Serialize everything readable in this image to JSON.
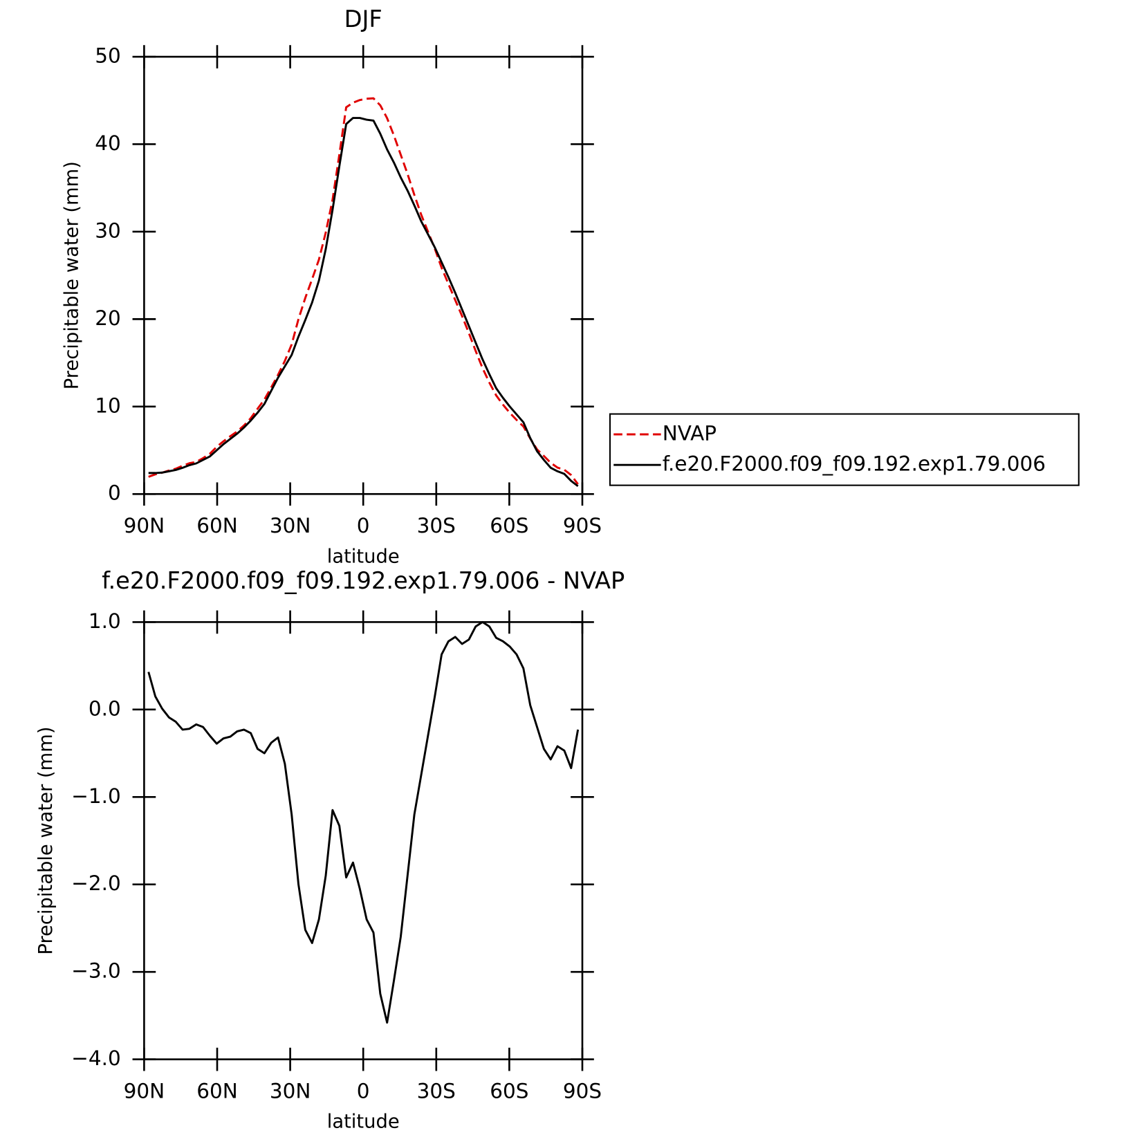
{
  "chart_data": [
    {
      "type": "line",
      "title": "DJF",
      "xlabel": "latitude",
      "ylabel": "Precipitable water (mm)",
      "x": [
        88.2,
        85.4,
        82.6,
        79.8,
        77,
        74.2,
        71.4,
        68.6,
        65.8,
        63,
        60.2,
        57.4,
        54.6,
        51.8,
        49,
        46.2,
        43.4,
        40.6,
        37.8,
        35,
        32.2,
        29.4,
        26.6,
        23.8,
        21,
        18.2,
        15.4,
        12.6,
        9.8,
        7,
        4.2,
        1.4,
        -1.4,
        -4.2,
        -7,
        -9.8,
        -12.6,
        -15.4,
        -18.2,
        -21,
        -23.8,
        -26.6,
        -29.4,
        -32.2,
        -35,
        -37.8,
        -40.6,
        -43.4,
        -46.2,
        -49,
        -51.8,
        -54.6,
        -57.4,
        -60.2,
        -63,
        -65.8,
        -68.6,
        -71.4,
        -74.2,
        -77,
        -79.8,
        -82.6,
        -85.4,
        -88.2
      ],
      "series": [
        {
          "name": "NVAP",
          "color": "#e00000",
          "line_style": "dashed",
          "values": [
            1.97,
            2.25,
            2.44,
            2.69,
            2.89,
            3.23,
            3.52,
            3.67,
            4.1,
            4.6,
            5.39,
            6.03,
            6.61,
            7.15,
            7.83,
            8.67,
            9.75,
            10.8,
            12.18,
            13.62,
            15.22,
            17.1,
            20,
            22.42,
            24.57,
            26.8,
            29.9,
            33.65,
            38.83,
            44.22,
            44.75,
            45.05,
            45.2,
            45.25,
            44.45,
            42.98,
            41,
            38.8,
            36.6,
            34.2,
            31.95,
            30,
            28.05,
            25.87,
            24.02,
            22.17,
            20.35,
            18.4,
            16.35,
            14.4,
            12.75,
            11.28,
            10.22,
            9.28,
            8.47,
            7.73,
            6.35,
            5.1,
            4.35,
            3.57,
            3.02,
            2.77,
            2.17,
            1.13
          ]
        },
        {
          "name": "f.e20.F2000.f09_f09.192.exp1.79.006",
          "color": "#000000",
          "line_style": "solid",
          "values": [
            2.4,
            2.4,
            2.45,
            2.6,
            2.75,
            3.0,
            3.3,
            3.5,
            3.9,
            4.3,
            5.0,
            5.7,
            6.3,
            6.9,
            7.6,
            8.4,
            9.3,
            10.3,
            11.8,
            13.3,
            14.6,
            15.9,
            18.0,
            19.9,
            21.9,
            24.4,
            28.0,
            32.5,
            37.5,
            42.3,
            43.0,
            43.0,
            42.8,
            42.7,
            41.2,
            39.4,
            37.9,
            36.2,
            34.7,
            33.0,
            31.2,
            29.7,
            28.2,
            26.5,
            24.8,
            23.0,
            21.1,
            19.2,
            17.3,
            15.4,
            13.7,
            12.1,
            11.0,
            10.0,
            9.1,
            8.2,
            6.4,
            4.9,
            3.9,
            3.0,
            2.6,
            2.3,
            1.5,
            0.9
          ]
        }
      ],
      "xlim": [
        90,
        -90
      ],
      "xticks": [
        {
          "value": 90,
          "label": "90N"
        },
        {
          "value": 60,
          "label": "60N"
        },
        {
          "value": 30,
          "label": "30N"
        },
        0,
        {
          "value": -30,
          "label": "30S"
        },
        {
          "value": -60,
          "label": "60S"
        },
        {
          "value": -90,
          "label": "90S"
        }
      ],
      "ylim": [
        0,
        50
      ],
      "yticks": [
        0,
        10,
        20,
        30,
        40,
        50
      ],
      "legend": "outside-right"
    },
    {
      "type": "line",
      "title": "f.e20.F2000.f09_f09.192.exp1.79.006 - NVAP",
      "xlabel": "latitude",
      "ylabel": "Precipitable water (mm)",
      "x": [
        88.2,
        85.4,
        82.6,
        79.8,
        77,
        74.2,
        71.4,
        68.6,
        65.8,
        63,
        60.2,
        57.4,
        54.6,
        51.8,
        49,
        46.2,
        43.4,
        40.6,
        37.8,
        35,
        32.2,
        29.4,
        26.6,
        23.8,
        21,
        18.2,
        15.4,
        12.6,
        9.8,
        7,
        4.2,
        1.4,
        -1.4,
        -4.2,
        -7,
        -9.8,
        -12.6,
        -15.4,
        -18.2,
        -21,
        -23.8,
        -26.6,
        -29.4,
        -32.2,
        -35,
        -37.8,
        -40.6,
        -43.4,
        -46.2,
        -49,
        -51.8,
        -54.6,
        -57.4,
        -60.2,
        -63,
        -65.8,
        -68.6,
        -71.4,
        -74.2,
        -77,
        -79.8,
        -82.6,
        -85.4,
        -88.2
      ],
      "series": [
        {
          "color": "#000000",
          "line_style": "solid",
          "values": [
            0.43,
            0.15,
            0.01,
            -0.09,
            -0.14,
            -0.23,
            -0.22,
            -0.17,
            -0.2,
            -0.3,
            -0.39,
            -0.33,
            -0.31,
            -0.25,
            -0.23,
            -0.27,
            -0.45,
            -0.5,
            -0.38,
            -0.32,
            -0.62,
            -1.2,
            -2.0,
            -2.52,
            -2.67,
            -2.4,
            -1.9,
            -1.15,
            -1.33,
            -1.92,
            -1.75,
            -2.05,
            -2.4,
            -2.55,
            -3.25,
            -3.58,
            -3.1,
            -2.6,
            -1.9,
            -1.2,
            -0.75,
            -0.3,
            0.15,
            0.63,
            0.78,
            0.83,
            0.75,
            0.8,
            0.95,
            1.0,
            0.95,
            0.82,
            0.78,
            0.72,
            0.63,
            0.47,
            0.05,
            -0.2,
            -0.45,
            -0.57,
            -0.42,
            -0.47,
            -0.67,
            -0.23
          ]
        }
      ],
      "xlim": [
        90,
        -90
      ],
      "xticks": [
        {
          "value": 90,
          "label": "90N"
        },
        {
          "value": 60,
          "label": "60N"
        },
        {
          "value": 30,
          "label": "30N"
        },
        0,
        {
          "value": -30,
          "label": "30S"
        },
        {
          "value": -60,
          "label": "60S"
        },
        {
          "value": -90,
          "label": "90S"
        }
      ],
      "ylim": [
        -4,
        1
      ],
      "yticks": [
        {
          "value": -4,
          "label": "−4.0"
        },
        {
          "value": -3,
          "label": "−3.0"
        },
        {
          "value": -2,
          "label": "−2.0"
        },
        {
          "value": -1,
          "label": "−1.0"
        },
        {
          "value": 0,
          "label": "0.0"
        },
        {
          "value": 1,
          "label": "1.0"
        }
      ]
    }
  ]
}
